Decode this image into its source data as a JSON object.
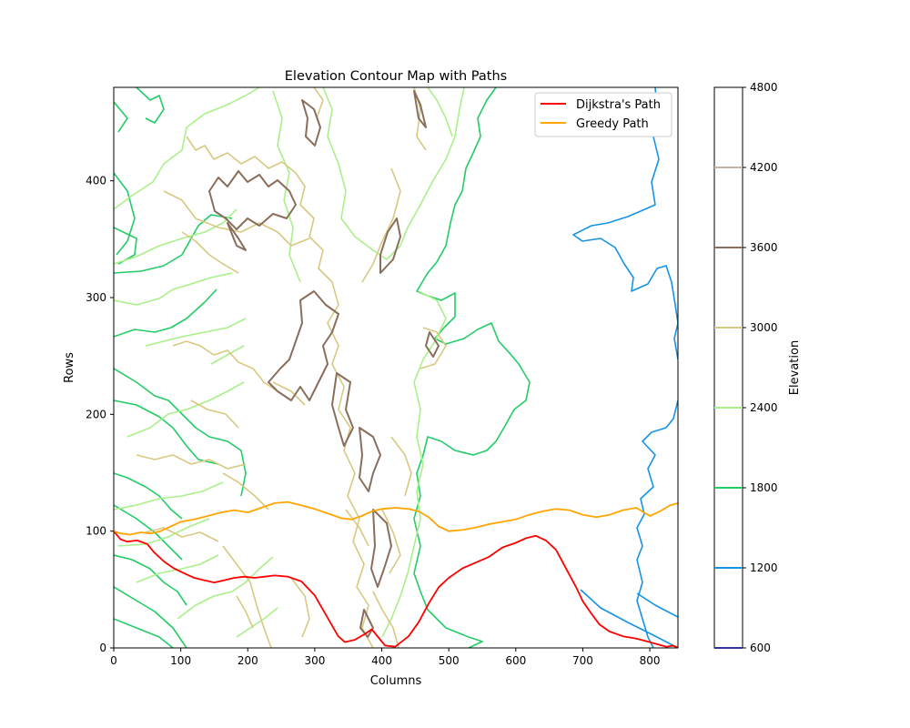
{
  "chart_data": {
    "type": "contour",
    "title": "Elevation Contour Map with Paths",
    "xlabel": "Columns",
    "ylabel": "Rows",
    "xlim": [
      0,
      842
    ],
    "ylim": [
      0,
      480
    ],
    "xticks": [
      0,
      100,
      200,
      300,
      400,
      500,
      600,
      700,
      800
    ],
    "yticks": [
      0,
      100,
      200,
      300,
      400
    ],
    "legend": {
      "placement": "top-right",
      "entries": [
        {
          "label": "Dijkstra's Path",
          "color": "#ff0000"
        },
        {
          "label": "Greedy Path",
          "color": "#ffa500"
        }
      ]
    },
    "colorbar": {
      "label": "Elevation",
      "ticks": [
        600,
        1200,
        1800,
        2400,
        3000,
        3600,
        4200,
        4800
      ],
      "lim": [
        600,
        4800
      ],
      "level_colors": {
        "600": "#333399",
        "1200": "#1493e8",
        "1800": "#22cc66",
        "2400": "#aaf08a",
        "3000": "#d7c981",
        "3600": "#8a6e5c",
        "4200": "#c4b1aa"
      }
    },
    "series": [
      {
        "name": "Dijkstra's Path",
        "color": "#ff0000",
        "x": [
          0,
          10,
          20,
          35,
          50,
          60,
          75,
          90,
          105,
          120,
          135,
          150,
          165,
          180,
          195,
          210,
          225,
          240,
          260,
          280,
          300,
          320,
          335,
          345,
          360,
          375,
          385,
          395,
          405,
          420,
          440,
          455,
          470,
          485,
          500,
          520,
          540,
          560,
          580,
          600,
          615,
          630,
          645,
          660,
          675,
          690,
          700,
          712,
          725,
          740,
          760,
          780,
          800,
          812,
          825,
          835,
          842
        ],
        "y": [
          100,
          93,
          91,
          92,
          89,
          82,
          74,
          68,
          64,
          60,
          58,
          56,
          58,
          60,
          61,
          60,
          61,
          62,
          61,
          57,
          45,
          25,
          10,
          5,
          7,
          12,
          16,
          9,
          2,
          1,
          10,
          22,
          38,
          52,
          60,
          68,
          73,
          78,
          86,
          90,
          94,
          96,
          92,
          84,
          68,
          52,
          40,
          30,
          20,
          14,
          10,
          8,
          5,
          3,
          1,
          2,
          0
        ]
      },
      {
        "name": "Greedy Path",
        "color": "#ffa500",
        "x": [
          0,
          10,
          25,
          40,
          55,
          70,
          85,
          100,
          120,
          140,
          160,
          180,
          200,
          220,
          240,
          260,
          280,
          300,
          320,
          340,
          355,
          370,
          385,
          400,
          420,
          440,
          455,
          470,
          485,
          500,
          520,
          540,
          560,
          580,
          600,
          620,
          640,
          660,
          680,
          700,
          720,
          740,
          760,
          780,
          800,
          815,
          830,
          842
        ],
        "y": [
          100,
          98,
          97,
          99,
          98,
          100,
          104,
          108,
          110,
          113,
          116,
          118,
          116,
          120,
          124,
          125,
          122,
          119,
          115,
          111,
          110,
          113,
          117,
          119,
          120,
          119,
          117,
          112,
          104,
          100,
          101,
          103,
          106,
          108,
          110,
          114,
          117,
          119,
          118,
          114,
          112,
          114,
          118,
          120,
          113,
          117,
          122,
          124
        ]
      }
    ]
  }
}
